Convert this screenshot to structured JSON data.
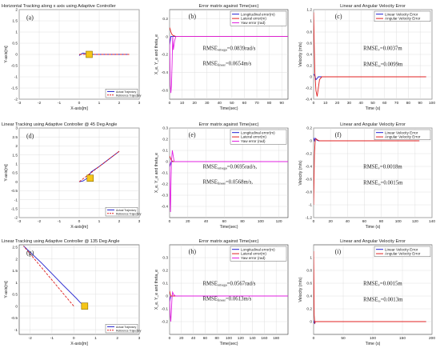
{
  "chart_data": [
    {
      "id": "a",
      "type": "line",
      "panel_label": "(a)",
      "title": "Horizontal Tracking along x axis using Adaptive Controller",
      "xlabel": "X-axis[m]",
      "ylabel": "Y-axis[m]",
      "xlim": [
        -3,
        3
      ],
      "ylim": [
        -2,
        2
      ],
      "xticks": [
        -3,
        -2,
        -1,
        0,
        1,
        2,
        3
      ],
      "yticks": [
        -2,
        -1.5,
        -1,
        -0.5,
        0,
        0.5,
        1,
        1.5,
        2
      ],
      "grid": true,
      "legend_position": "bottom-right",
      "series": [
        {
          "name": "Actual Trajectory",
          "color": "#1f1fd0",
          "style": "solid",
          "x": [
            0.0,
            0.1,
            0.2,
            0.3,
            0.5,
            1.0,
            2.5
          ],
          "y": [
            -0.05,
            0.02,
            0.06,
            0.04,
            0.0,
            0.0,
            0.0
          ]
        },
        {
          "name": "Reference Trajectory",
          "color": "#e02020",
          "style": "dashed",
          "x": [
            0.0,
            2.5
          ],
          "y": [
            0.0,
            0.0
          ]
        }
      ],
      "markers": [
        {
          "type": "square",
          "x": 0.5,
          "y": 0.0,
          "color": "#f5c518"
        }
      ]
    },
    {
      "id": "b",
      "type": "line",
      "panel_label": "(b)",
      "title": "Error matrix against Time(sec)",
      "xlabel": "Time(sec)",
      "ylabel": "X_e, Y_e and theta_e",
      "xlim": [
        0,
        95
      ],
      "ylim": [
        -0.7,
        0.3
      ],
      "xticks": [
        0,
        10,
        20,
        30,
        40,
        50,
        60,
        70,
        80,
        90
      ],
      "yticks": [
        -0.6,
        -0.4,
        -0.2,
        0,
        0.2
      ],
      "grid": true,
      "legend_position": "top-right",
      "series": [
        {
          "name": "Longitudinal error(m)",
          "color": "#1f1fd0",
          "x": [
            0,
            0.5,
            1,
            2,
            3,
            5,
            95
          ],
          "y": [
            -0.1,
            -0.05,
            0.0,
            0.0,
            0.0,
            0.0,
            0.0
          ]
        },
        {
          "name": "Lateral error(m)",
          "color": "#e02020",
          "x": [
            0,
            0.5,
            1,
            2,
            3,
            5,
            95
          ],
          "y": [
            0.1,
            0.08,
            0.05,
            0.02,
            0.01,
            0.0,
            0.0
          ]
        },
        {
          "name": "Yaw error (rad)",
          "color": "#e020e0",
          "x": [
            0,
            0.3,
            0.6,
            1,
            1.5,
            2,
            2.5,
            3,
            4,
            5,
            7,
            95
          ],
          "y": [
            0.0,
            -0.3,
            -0.55,
            -0.63,
            -0.55,
            -0.3,
            0.0,
            -0.15,
            -0.05,
            0.0,
            0.0,
            0.0
          ]
        }
      ],
      "annotations": [
        {
          "label": "RMSE",
          "sub": "omega",
          "value": "=0.0839rad/s"
        },
        {
          "label": "RMSE",
          "sub": "linear",
          "value": "=0.0654m/s"
        }
      ]
    },
    {
      "id": "c",
      "type": "line",
      "panel_label": "(c)",
      "title": "Linear and Angular Velocity Error",
      "xlabel": "Time (s)",
      "ylabel": "Velocity (m/s)",
      "xlim": [
        0,
        100
      ],
      "ylim": [
        -0.4,
        1.2
      ],
      "xticks": [
        0,
        10,
        20,
        30,
        40,
        50,
        60,
        70,
        80,
        90,
        100
      ],
      "yticks": [
        -0.4,
        -0.2,
        0,
        0.2,
        0.4,
        0.6,
        0.8,
        1,
        1.2
      ],
      "grid": true,
      "legend_position": "top-right",
      "series": [
        {
          "name": "Linear Velocity Error",
          "color": "#1f1fd0",
          "x": [
            0,
            1,
            2,
            3,
            4,
            6,
            95
          ],
          "y": [
            0.05,
            0.02,
            -0.05,
            -0.03,
            0.0,
            0.0,
            0.0
          ]
        },
        {
          "name": "Angular Velocity Error",
          "color": "#e02020",
          "x": [
            0,
            0.5,
            1,
            2,
            3,
            4,
            5,
            7,
            95
          ],
          "y": [
            1.15,
            0.6,
            0.1,
            -0.25,
            -0.35,
            -0.2,
            -0.05,
            0.0,
            0.0
          ]
        }
      ],
      "annotations": [
        {
          "label": "RMSE",
          "sub": "v",
          "value": "=0.0037m"
        },
        {
          "label": "RMSE",
          "sub": "ω",
          "value": "=0.0099m"
        }
      ]
    },
    {
      "id": "d",
      "type": "line",
      "panel_label": "(d)",
      "title": "Linear Tracking using Adaptive Controller @ 45 Deg Angle",
      "xlabel": "X-axis[m]",
      "ylabel": "Y-axis[m]",
      "xlim": [
        -3,
        3
      ],
      "ylim": [
        -2,
        3
      ],
      "xticks": [
        -3,
        -2,
        -1,
        0,
        1,
        2,
        3
      ],
      "yticks": [
        -2,
        -1.5,
        -1,
        -0.5,
        0,
        0.5,
        1,
        1.5,
        2,
        2.5,
        3
      ],
      "grid": true,
      "legend_position": "bottom-right",
      "series": [
        {
          "name": "Actual Trajectory",
          "color": "#1f1fd0",
          "style": "solid",
          "x": [
            0.0,
            0.2,
            0.4,
            0.6,
            1.0,
            2.0
          ],
          "y": [
            0.0,
            0.05,
            0.2,
            0.55,
            0.85,
            1.7
          ]
        },
        {
          "name": "Reference Trajectory",
          "color": "#e02020",
          "style": "dashed",
          "x": [
            0.0,
            2.0
          ],
          "y": [
            0.0,
            1.7
          ]
        }
      ],
      "markers": [
        {
          "type": "square",
          "x": 0.55,
          "y": 0.2,
          "color": "#f5c518"
        }
      ]
    },
    {
      "id": "e",
      "type": "line",
      "panel_label": "(e)",
      "title": "Error matrix against Time(sec)",
      "xlabel": "Time(sec)",
      "ylabel": "X_e, Y_e and theta_e",
      "xlim": [
        0,
        130
      ],
      "ylim": [
        -0.5,
        0.3
      ],
      "xticks": [
        0,
        20,
        40,
        60,
        80,
        100,
        120
      ],
      "yticks": [
        -0.4,
        -0.3,
        -0.2,
        -0.1,
        0,
        0.1,
        0.2,
        0.3
      ],
      "grid": true,
      "legend_position": "top-right",
      "series": [
        {
          "name": "Longitudinal error(m)",
          "color": "#1f1fd0",
          "x": [
            0,
            1,
            2,
            4,
            130
          ],
          "y": [
            -0.05,
            -0.02,
            0.0,
            0.0,
            0.0
          ]
        },
        {
          "name": "Lateral error(m)",
          "color": "#e02020",
          "x": [
            0,
            1,
            2,
            4,
            130
          ],
          "y": [
            0.05,
            0.03,
            0.01,
            0.0,
            0.0
          ]
        },
        {
          "name": "Yaw error (rad)",
          "color": "#e020e0",
          "x": [
            0,
            0.5,
            1,
            1.5,
            2,
            3,
            4,
            5,
            7,
            130
          ],
          "y": [
            0.0,
            -0.35,
            -0.45,
            -0.2,
            0.0,
            0.1,
            0.05,
            0.0,
            0.0,
            0.0
          ]
        }
      ],
      "annotations": [
        {
          "label": "RMSE",
          "sub": "omega",
          "value": "=0.0695rad/s,"
        },
        {
          "label": "RMSE",
          "sub": "linear",
          "value": "=0.0568m/s,"
        }
      ]
    },
    {
      "id": "f",
      "type": "line",
      "panel_label": "(f)",
      "title": "Linear and Angular Velocity Error",
      "xlabel": "Time (s)",
      "ylabel": "Velocity (m/s)",
      "xlim": [
        0,
        140
      ],
      "ylim": [
        -1.2,
        0.2
      ],
      "xticks": [
        0,
        20,
        40,
        60,
        80,
        100,
        120,
        140
      ],
      "yticks": [
        -1.2,
        -1,
        -0.8,
        -0.6,
        -0.4,
        -0.2,
        0,
        0.2
      ],
      "grid": true,
      "legend_position": "top-right",
      "series": [
        {
          "name": "Linear Velocity Error",
          "color": "#1f1fd0",
          "x": [
            0,
            1,
            2,
            4,
            6,
            125
          ],
          "y": [
            0.05,
            0.0,
            0.04,
            0.01,
            0.0,
            0.0
          ]
        },
        {
          "name": "Angular Velocity Error",
          "color": "#e02020",
          "x": [
            0,
            0.5,
            1,
            2,
            3,
            5,
            7,
            125
          ],
          "y": [
            -1.0,
            -0.6,
            -0.2,
            0.02,
            0.03,
            0.01,
            0.0,
            0.0
          ]
        }
      ],
      "annotations": [
        {
          "label": "RMSE",
          "sub": "v",
          "value": "=0.0018m"
        },
        {
          "label": "RMSE",
          "sub": "ω",
          "value": "=0.0015m"
        }
      ]
    },
    {
      "id": "g",
      "type": "line",
      "panel_label": "(g)",
      "title": "Linear Tracking using Adaptive Controller @ 135 Deg Angle",
      "xlabel": "X-axis[m]",
      "ylabel": "Y-axis[m]",
      "xlim": [
        -2.5,
        3
      ],
      "ylim": [
        -1.2,
        2.6
      ],
      "xticks": [
        -2,
        -1,
        0,
        1,
        2,
        3
      ],
      "yticks": [
        -1,
        -0.5,
        0,
        0.5,
        1,
        1.5,
        2,
        2.5
      ],
      "grid": true,
      "legend_position": "top-right",
      "series": [
        {
          "name": "Actual Trajectory",
          "color": "#1f1fd0",
          "style": "solid",
          "x": [
            0.5,
            0.3,
            0.1,
            -0.5,
            -1.5,
            -2.3
          ],
          "y": [
            0.0,
            0.15,
            0.35,
            0.9,
            1.85,
            2.55
          ]
        },
        {
          "name": "Reference Trajectory",
          "color": "#e02020",
          "style": "dashed",
          "x": [
            0.0,
            -2.3
          ],
          "y": [
            0.0,
            2.55
          ]
        }
      ],
      "markers": [
        {
          "type": "square",
          "x": 0.5,
          "y": 0.0,
          "color": "#f5c518"
        }
      ]
    },
    {
      "id": "h",
      "type": "line",
      "panel_label": "(h)",
      "title": "Error matrix against Time(sec)",
      "xlabel": "Time(sec)",
      "ylabel": "X_e, Y_e and theta_e",
      "xlim": [
        0,
        200
      ],
      "ylim": [
        -0.3,
        0.4
      ],
      "xticks": [
        0,
        20,
        40,
        60,
        80,
        100,
        120,
        140,
        160,
        180
      ],
      "yticks": [
        -0.2,
        -0.1,
        0,
        0.1,
        0.2,
        0.3
      ],
      "grid": true,
      "legend_position": "top-right",
      "series": [
        {
          "name": "Longitudinal error(m)",
          "color": "#1f1fd0",
          "x": [
            0,
            1,
            2,
            4,
            200
          ],
          "y": [
            -0.05,
            -0.02,
            0.0,
            0.0,
            0.0
          ]
        },
        {
          "name": "Lateral error(m)",
          "color": "#e02020",
          "x": [
            0,
            1,
            2,
            4,
            200
          ],
          "y": [
            0.04,
            0.02,
            0.0,
            0.0,
            0.0
          ]
        },
        {
          "name": "Yaw error (rad)",
          "color": "#e020e0",
          "x": [
            0,
            1,
            2,
            3,
            4,
            5,
            7,
            10,
            200
          ],
          "y": [
            0.0,
            -0.15,
            -0.2,
            -0.12,
            -0.02,
            0.03,
            0.01,
            0.0,
            0.0
          ]
        }
      ],
      "annotations": [
        {
          "label": "RMSE",
          "sub": "omega",
          "value": "=0.0567rad/s"
        },
        {
          "label": "RMSE",
          "sub": "linear",
          "value": "=0.0613m/s"
        }
      ]
    },
    {
      "id": "i",
      "type": "line",
      "panel_label": "(i)",
      "title": "Linear and Angular Velocity Error",
      "xlabel": "Time (s)",
      "ylabel": "Velocity (m/s)",
      "xlim": [
        0,
        200
      ],
      "ylim": [
        -0.2,
        1.2
      ],
      "xticks": [
        0,
        50,
        100,
        150,
        200
      ],
      "yticks": [
        0,
        0.2,
        0.4,
        0.6,
        0.8,
        1
      ],
      "grid": true,
      "legend_position": "top-right",
      "series": [
        {
          "name": "Linear Velocity Error",
          "color": "#1f1fd0",
          "x": [
            0,
            1,
            2,
            3,
            5,
            190
          ],
          "y": [
            0.02,
            -0.02,
            -0.03,
            0.0,
            0.0,
            0.0
          ]
        },
        {
          "name": "Angular Velocity Error",
          "color": "#e02020",
          "x": [
            0,
            0.5,
            1,
            2,
            3,
            5,
            190
          ],
          "y": [
            1.1,
            0.6,
            0.1,
            -0.02,
            0.0,
            0.0,
            0.0
          ]
        }
      ],
      "annotations": [
        {
          "label": "RMSE",
          "sub": "v",
          "value": "=0.0015m"
        },
        {
          "label": "RMSE",
          "sub": "ω",
          "value": "=0.0013m"
        }
      ]
    }
  ]
}
